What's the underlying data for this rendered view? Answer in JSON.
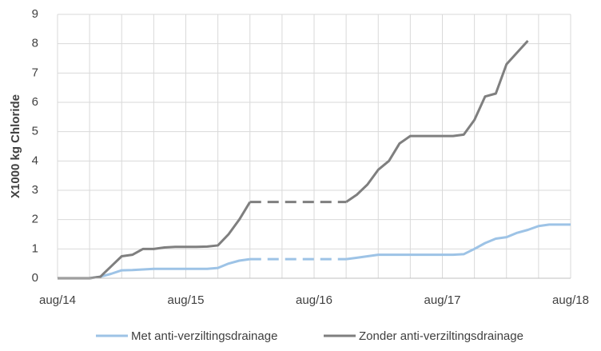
{
  "chart_data": {
    "type": "line",
    "y_label": "X1000 kg Chloride",
    "x": [
      "2014-08",
      "2014-09",
      "2014-10",
      "2014-11",
      "2014-12",
      "2015-01",
      "2015-02",
      "2015-03",
      "2015-04",
      "2015-05",
      "2015-06",
      "2015-07",
      "2015-08",
      "2015-09",
      "2015-10",
      "2015-11",
      "2015-12",
      "2016-01",
      "2016-02",
      "2016-03",
      "2016-04",
      "2016-05",
      "2016-06",
      "2016-07",
      "2016-08",
      "2016-09",
      "2016-10",
      "2016-11",
      "2016-12",
      "2017-01",
      "2017-02",
      "2017-03",
      "2017-04",
      "2017-05",
      "2017-06",
      "2017-07",
      "2017-08",
      "2017-09",
      "2017-10",
      "2017-11",
      "2017-12",
      "2018-01",
      "2018-02",
      "2018-03",
      "2018-04",
      "2018-05",
      "2018-06",
      "2018-07",
      "2018-08"
    ],
    "series": [
      {
        "name": "Met anti-verziltingsdrainage",
        "color": "#9dc3e6",
        "values": [
          0,
          0,
          0,
          0,
          0.05,
          0.15,
          0.27,
          0.28,
          0.3,
          0.32,
          0.32,
          0.32,
          0.32,
          0.32,
          0.32,
          0.35,
          0.5,
          0.6,
          0.65,
          null,
          null,
          null,
          null,
          null,
          null,
          null,
          null,
          0.65,
          0.7,
          0.75,
          0.8,
          0.8,
          0.8,
          0.8,
          0.8,
          0.8,
          0.8,
          0.8,
          0.82,
          1.0,
          1.2,
          1.35,
          1.4,
          1.55,
          1.65,
          1.78,
          1.83,
          1.83,
          1.83
        ]
      },
      {
        "name": "Zonder anti-verziltingsdrainage",
        "color": "#7f7f7f",
        "values": [
          0,
          0,
          0,
          0,
          0.05,
          0.4,
          0.75,
          0.8,
          1.0,
          1.0,
          1.05,
          1.07,
          1.07,
          1.07,
          1.08,
          1.12,
          1.5,
          2.0,
          2.6,
          null,
          null,
          null,
          null,
          null,
          null,
          null,
          null,
          2.6,
          2.85,
          3.2,
          3.7,
          4.0,
          4.6,
          4.85,
          4.85,
          4.85,
          4.85,
          4.85,
          4.9,
          5.4,
          6.2,
          6.3,
          7.3,
          7.7,
          8.1,
          null,
          null,
          null,
          null
        ]
      }
    ],
    "gap_style": "dashed",
    "xlim": [
      "2014-08",
      "2018-08"
    ],
    "xticks": [
      {
        "value": "2014-08",
        "label": "aug/14"
      },
      {
        "value": "2014-11",
        "label": null
      },
      {
        "value": "2015-02",
        "label": null
      },
      {
        "value": "2015-05",
        "label": null
      },
      {
        "value": "2015-08",
        "label": "aug/15"
      },
      {
        "value": "2015-11",
        "label": null
      },
      {
        "value": "2016-02",
        "label": null
      },
      {
        "value": "2016-05",
        "label": null
      },
      {
        "value": "2016-08",
        "label": "aug/16"
      },
      {
        "value": "2016-11",
        "label": null
      },
      {
        "value": "2017-02",
        "label": null
      },
      {
        "value": "2017-05",
        "label": null
      },
      {
        "value": "2017-08",
        "label": "aug/17"
      },
      {
        "value": "2017-11",
        "label": null
      },
      {
        "value": "2018-02",
        "label": null
      },
      {
        "value": "2018-05",
        "label": null
      },
      {
        "value": "2018-08",
        "label": "aug/18"
      }
    ],
    "ylim": [
      0,
      9
    ],
    "yticks": [
      0,
      1,
      2,
      3,
      4,
      5,
      6,
      7,
      8,
      9
    ],
    "grid": true,
    "legend": "bottom"
  }
}
